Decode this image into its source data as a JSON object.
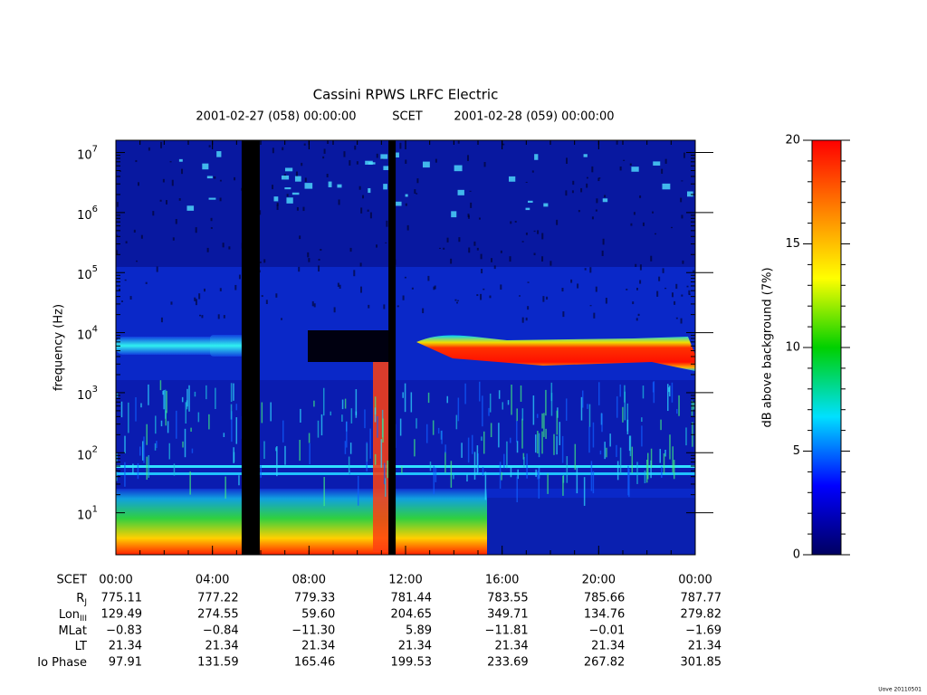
{
  "chart_data": {
    "type": "spectrogram",
    "title": "Cassini RPWS LRFC Electric",
    "time_range": {
      "start": "2001-02-27 (058) 00:00:00",
      "system": "SCET",
      "end": "2001-02-28 (059) 00:00:00"
    },
    "ylabel": "frequency (Hz)",
    "log_y": true,
    "ylim": [
      2,
      16000000
    ],
    "yticks": [
      {
        "value": 10,
        "label": "10",
        "exponent": "1"
      },
      {
        "value": 100,
        "label": "10",
        "exponent": "2"
      },
      {
        "value": 1000,
        "label": "10",
        "exponent": "3"
      },
      {
        "value": 10000,
        "label": "10",
        "exponent": "4"
      },
      {
        "value": 100000,
        "label": "10",
        "exponent": "5"
      },
      {
        "value": 1000000,
        "label": "10",
        "exponent": "6"
      },
      {
        "value": 10000000,
        "label": "10",
        "exponent": "7"
      }
    ],
    "xlabel": "SCET",
    "xlim": [
      0,
      24
    ],
    "xticks": [
      {
        "value": 0,
        "label": "00:00"
      },
      {
        "value": 4,
        "label": "04:00"
      },
      {
        "value": 8,
        "label": "08:00"
      },
      {
        "value": 12,
        "label": "12:00"
      },
      {
        "value": 16,
        "label": "16:00"
      },
      {
        "value": 20,
        "label": "20:00"
      },
      {
        "value": 24,
        "label": "00:00"
      }
    ],
    "data_gaps": [
      [
        5.21,
        5.96
      ],
      [
        11.29,
        11.59
      ]
    ],
    "ephemeris": [
      {
        "name": "R",
        "sub": "J",
        "values": [
          "775.11",
          "777.22",
          "779.33",
          "781.44",
          "783.55",
          "785.66",
          "787.77"
        ]
      },
      {
        "name": "Lon",
        "sub": "III",
        "values": [
          "129.49",
          "274.55",
          "59.60",
          "204.65",
          "349.71",
          "134.76",
          "279.82"
        ]
      },
      {
        "name": "MLat",
        "values": [
          "−0.83",
          "−0.84",
          "−11.30",
          "5.89",
          "−11.81",
          "−0.01",
          "−1.69"
        ]
      },
      {
        "name": "LT",
        "values": [
          "21.34",
          "21.34",
          "21.34",
          "21.34",
          "21.34",
          "21.34",
          "21.34"
        ]
      },
      {
        "name": "Io Phase",
        "values": [
          "97.91",
          "131.59",
          "165.46",
          "199.53",
          "233.69",
          "267.82",
          "301.85"
        ]
      }
    ],
    "colorbar": {
      "label": "dB above background (7%)",
      "zlim": [
        0,
        20
      ],
      "zticks": [
        0,
        5,
        10,
        15,
        20
      ],
      "colors": [
        "#000060",
        "#0000ff",
        "#00e0ff",
        "#00d000",
        "#ffff00",
        "#ff8000",
        "#ff0000"
      ]
    },
    "footer": "Uove 20110501"
  }
}
